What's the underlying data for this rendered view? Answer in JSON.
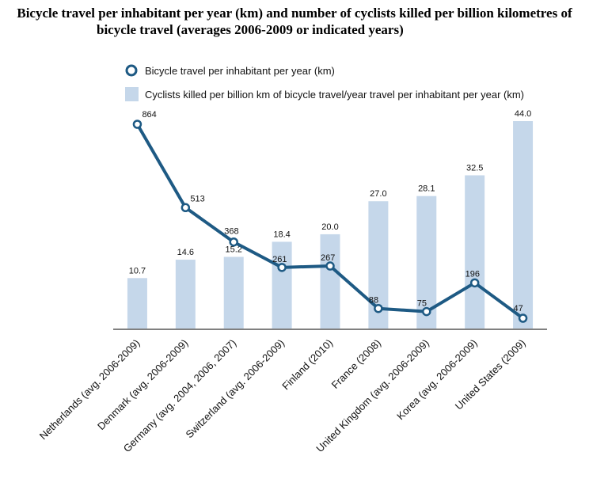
{
  "title_line1": "Bicycle travel per inhabitant per year (km) and number of cyclists killed per billion kilometres of",
  "title_line2": "bicycle travel (averages 2006-2009 or indicated years)",
  "colors": {
    "bar": "#c5d7ea",
    "line": "#1e5a84"
  },
  "chart_data": {
    "type": "bar",
    "categories": [
      "Netherlands (avg. 2006-2009)",
      "Denmark (avg. 2006-2009)",
      "Germany (avg. 2004, 2006, 2007)",
      "Switzerland (avg. 2006-2009)",
      "Finland (2010)",
      "France (2008)",
      "United Kingdom (avg. 2006-2009)",
      "Korea (avg. 2006-2009)",
      "United States (2009)"
    ],
    "series": [
      {
        "name": "Bicycle travel per inhabitant per year (km)",
        "type": "line",
        "values": [
          864,
          513,
          368,
          261,
          267,
          88,
          75,
          196,
          47
        ],
        "labels": [
          "864",
          "513",
          "368",
          "261",
          "267",
          "88",
          "75",
          "196",
          "47"
        ]
      },
      {
        "name": "Cyclists killed per billion km of bicycle travel/year travel per inhabitant per year (km)",
        "type": "bar",
        "values": [
          10.7,
          14.6,
          15.2,
          18.4,
          20.0,
          27.0,
          28.1,
          32.5,
          44.0
        ],
        "labels": [
          "10.7",
          "14.6",
          "15.2",
          "18.4",
          "20.0",
          "27.0",
          "28.1",
          "32.5",
          "44.0"
        ]
      }
    ],
    "legend_position": "top",
    "grid": false
  }
}
